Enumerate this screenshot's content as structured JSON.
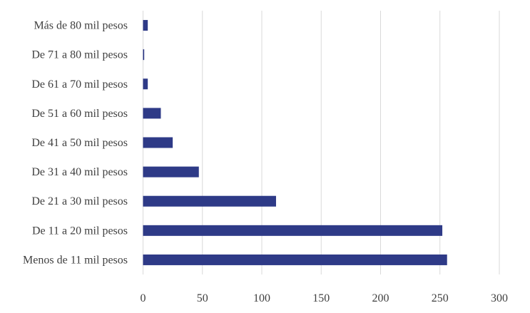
{
  "chart_data": {
    "type": "bar",
    "orientation": "horizontal",
    "title": "",
    "xlabel": "",
    "ylabel": "",
    "categories": [
      "Menos de 11 mil pesos",
      "De 11 a 20 mil pesos",
      "De 21 a 30 mil pesos",
      "De 31 a 40 mil pesos",
      "De 41 a 50 mil pesos",
      "De 51 a 60 mil pesos",
      "De 61 a 70 mil pesos",
      "De 71 a 80 mil pesos",
      "Más de 80 mil pesos"
    ],
    "values": [
      256,
      252,
      112,
      47,
      25,
      15,
      4,
      1,
      4
    ],
    "xlim": [
      0,
      300
    ],
    "xticks": [
      0,
      50,
      100,
      150,
      200,
      250,
      300
    ],
    "grid": true,
    "bar_color": "#2e3a87",
    "grid_color": "#d9d9d9"
  }
}
